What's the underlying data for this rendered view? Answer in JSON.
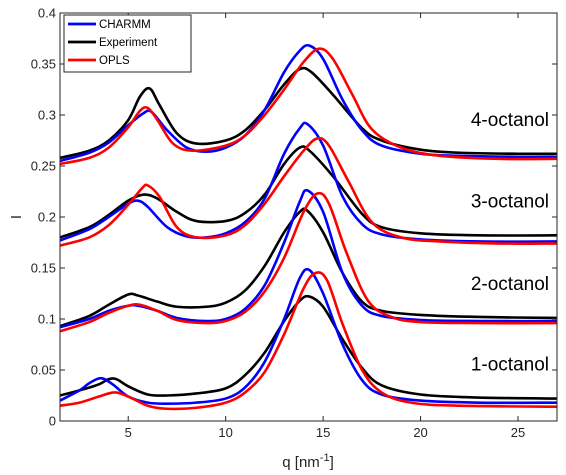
{
  "chart_data": {
    "type": "line",
    "xlabel": "q [nm",
    "xlabel_sup": "-1",
    "xlabel_end": "]",
    "ylabel": "I",
    "xlim": [
      1.5,
      27
    ],
    "ylim": [
      0,
      0.4
    ],
    "x_ticks": [
      5,
      10,
      15,
      20,
      25
    ],
    "y_ticks": [
      0,
      0.05,
      0.1,
      0.15,
      0.2,
      0.25,
      0.3,
      0.35,
      0.4
    ],
    "x_tick_labels": [
      "5",
      "10",
      "15",
      "20",
      "25"
    ],
    "y_tick_labels": [
      "0",
      "0.05",
      "0.1",
      "0.15",
      "0.2",
      "0.25",
      "0.3",
      "0.35",
      "0.4"
    ],
    "grid": false,
    "legend_position": "top-left",
    "legend": [
      {
        "name": "CHARMM",
        "color": "#0000ff"
      },
      {
        "name": "Experiment",
        "color": "#000000"
      },
      {
        "name": "OPLS",
        "color": "#ff0000"
      }
    ],
    "groups": [
      {
        "label": "4-octanol",
        "series": {
          "CHARMM": [
            [
              1.5,
              0.255
            ],
            [
              3,
              0.263
            ],
            [
              4,
              0.273
            ],
            [
              5,
              0.29
            ],
            [
              5.8,
              0.302
            ],
            [
              6.2,
              0.303
            ],
            [
              7,
              0.285
            ],
            [
              8,
              0.268
            ],
            [
              9,
              0.264
            ],
            [
              10,
              0.268
            ],
            [
              11,
              0.28
            ],
            [
              12,
              0.305
            ],
            [
              13,
              0.342
            ],
            [
              13.8,
              0.363
            ],
            [
              14.3,
              0.368
            ],
            [
              15,
              0.355
            ],
            [
              16,
              0.315
            ],
            [
              17,
              0.285
            ],
            [
              18,
              0.27
            ],
            [
              20,
              0.262
            ],
            [
              22,
              0.26
            ],
            [
              25,
              0.259
            ],
            [
              27,
              0.259
            ]
          ],
          "Experiment": [
            [
              1.5,
              0.258
            ],
            [
              3,
              0.265
            ],
            [
              4,
              0.275
            ],
            [
              5,
              0.295
            ],
            [
              5.6,
              0.318
            ],
            [
              6.1,
              0.326
            ],
            [
              6.6,
              0.31
            ],
            [
              7.5,
              0.282
            ],
            [
              8.5,
              0.272
            ],
            [
              10,
              0.275
            ],
            [
              11,
              0.285
            ],
            [
              12,
              0.305
            ],
            [
              13,
              0.33
            ],
            [
              13.8,
              0.345
            ],
            [
              14.4,
              0.342
            ],
            [
              15.5,
              0.32
            ],
            [
              17,
              0.287
            ],
            [
              18,
              0.275
            ],
            [
              20,
              0.266
            ],
            [
              22,
              0.263
            ],
            [
              25,
              0.262
            ],
            [
              27,
              0.262
            ]
          ],
          "OPLS": [
            [
              1.5,
              0.252
            ],
            [
              3,
              0.258
            ],
            [
              4,
              0.268
            ],
            [
              5,
              0.288
            ],
            [
              5.6,
              0.304
            ],
            [
              6,
              0.307
            ],
            [
              6.5,
              0.295
            ],
            [
              7.3,
              0.272
            ],
            [
              8.3,
              0.265
            ],
            [
              10,
              0.27
            ],
            [
              11,
              0.28
            ],
            [
              12,
              0.3
            ],
            [
              13,
              0.325
            ],
            [
              14,
              0.352
            ],
            [
              14.8,
              0.365
            ],
            [
              15.5,
              0.355
            ],
            [
              16.5,
              0.32
            ],
            [
              17.5,
              0.286
            ],
            [
              19,
              0.268
            ],
            [
              21,
              0.26
            ],
            [
              24,
              0.257
            ],
            [
              27,
              0.257
            ]
          ]
        }
      },
      {
        "label": "3-octanol",
        "series": {
          "CHARMM": [
            [
              1.5,
              0.177
            ],
            [
              3,
              0.188
            ],
            [
              4,
              0.2
            ],
            [
              5,
              0.213
            ],
            [
              5.5,
              0.216
            ],
            [
              6,
              0.21
            ],
            [
              7,
              0.19
            ],
            [
              8,
              0.181
            ],
            [
              9,
              0.18
            ],
            [
              10,
              0.184
            ],
            [
              11,
              0.195
            ],
            [
              12,
              0.218
            ],
            [
              13,
              0.262
            ],
            [
              13.8,
              0.287
            ],
            [
              14.2,
              0.291
            ],
            [
              15,
              0.27
            ],
            [
              16,
              0.22
            ],
            [
              17,
              0.193
            ],
            [
              18,
              0.183
            ],
            [
              20,
              0.178
            ],
            [
              23,
              0.176
            ],
            [
              27,
              0.176
            ]
          ],
          "Experiment": [
            [
              1.5,
              0.18
            ],
            [
              3,
              0.19
            ],
            [
              4,
              0.202
            ],
            [
              5,
              0.216
            ],
            [
              5.8,
              0.222
            ],
            [
              6.5,
              0.218
            ],
            [
              7.5,
              0.205
            ],
            [
              8.5,
              0.196
            ],
            [
              10,
              0.196
            ],
            [
              11,
              0.204
            ],
            [
              12,
              0.222
            ],
            [
              13,
              0.252
            ],
            [
              13.8,
              0.268
            ],
            [
              14.3,
              0.265
            ],
            [
              15.5,
              0.24
            ],
            [
              17,
              0.203
            ],
            [
              18,
              0.19
            ],
            [
              20,
              0.184
            ],
            [
              23,
              0.182
            ],
            [
              27,
              0.182
            ]
          ],
          "OPLS": [
            [
              1.5,
              0.172
            ],
            [
              3,
              0.18
            ],
            [
              4,
              0.192
            ],
            [
              5,
              0.212
            ],
            [
              5.7,
              0.228
            ],
            [
              6,
              0.231
            ],
            [
              6.6,
              0.22
            ],
            [
              7.5,
              0.19
            ],
            [
              8.5,
              0.18
            ],
            [
              10,
              0.182
            ],
            [
              11,
              0.192
            ],
            [
              12,
              0.213
            ],
            [
              13,
              0.24
            ],
            [
              14,
              0.265
            ],
            [
              14.7,
              0.277
            ],
            [
              15.3,
              0.27
            ],
            [
              16.3,
              0.235
            ],
            [
              17.5,
              0.195
            ],
            [
              19,
              0.18
            ],
            [
              21,
              0.176
            ],
            [
              24,
              0.174
            ],
            [
              27,
              0.174
            ]
          ]
        }
      },
      {
        "label": "2-octanol",
        "series": {
          "CHARMM": [
            [
              1.5,
              0.092
            ],
            [
              3,
              0.1
            ],
            [
              4,
              0.108
            ],
            [
              5,
              0.113
            ],
            [
              5.5,
              0.113
            ],
            [
              6.5,
              0.108
            ],
            [
              7.5,
              0.101
            ],
            [
              9,
              0.098
            ],
            [
              10,
              0.1
            ],
            [
              11,
              0.11
            ],
            [
              12,
              0.133
            ],
            [
              13,
              0.175
            ],
            [
              13.8,
              0.215
            ],
            [
              14.2,
              0.226
            ],
            [
              15,
              0.205
            ],
            [
              16,
              0.145
            ],
            [
              17,
              0.113
            ],
            [
              18,
              0.103
            ],
            [
              20,
              0.099
            ],
            [
              23,
              0.098
            ],
            [
              27,
              0.098
            ]
          ],
          "Experiment": [
            [
              1.5,
              0.093
            ],
            [
              3,
              0.103
            ],
            [
              4,
              0.114
            ],
            [
              5,
              0.124
            ],
            [
              5.5,
              0.123
            ],
            [
              6.5,
              0.117
            ],
            [
              7.5,
              0.112
            ],
            [
              9,
              0.112
            ],
            [
              10,
              0.116
            ],
            [
              11,
              0.128
            ],
            [
              12,
              0.152
            ],
            [
              13,
              0.185
            ],
            [
              13.8,
              0.205
            ],
            [
              14.2,
              0.206
            ],
            [
              15,
              0.185
            ],
            [
              16,
              0.145
            ],
            [
              17,
              0.117
            ],
            [
              18,
              0.108
            ],
            [
              20,
              0.104
            ],
            [
              23,
              0.102
            ],
            [
              27,
              0.101
            ]
          ],
          "OPLS": [
            [
              1.5,
              0.088
            ],
            [
              3,
              0.097
            ],
            [
              4,
              0.106
            ],
            [
              5,
              0.113
            ],
            [
              5.6,
              0.114
            ],
            [
              6.5,
              0.108
            ],
            [
              7.5,
              0.099
            ],
            [
              9,
              0.096
            ],
            [
              10,
              0.098
            ],
            [
              11,
              0.107
            ],
            [
              12,
              0.127
            ],
            [
              13,
              0.16
            ],
            [
              14,
              0.205
            ],
            [
              14.7,
              0.223
            ],
            [
              15.3,
              0.213
            ],
            [
              16.2,
              0.165
            ],
            [
              17.3,
              0.118
            ],
            [
              18.5,
              0.102
            ],
            [
              20,
              0.097
            ],
            [
              23,
              0.096
            ],
            [
              27,
              0.096
            ]
          ]
        }
      },
      {
        "label": "1-octanol",
        "series": {
          "CHARMM": [
            [
              1.5,
              0.02
            ],
            [
              2.5,
              0.03
            ],
            [
              3,
              0.037
            ],
            [
              3.6,
              0.042
            ],
            [
              4.2,
              0.036
            ],
            [
              5,
              0.024
            ],
            [
              6,
              0.018
            ],
            [
              7,
              0.017
            ],
            [
              8.5,
              0.018
            ],
            [
              10,
              0.022
            ],
            [
              11,
              0.033
            ],
            [
              12,
              0.058
            ],
            [
              13,
              0.1
            ],
            [
              13.8,
              0.14
            ],
            [
              14.3,
              0.148
            ],
            [
              15,
              0.125
            ],
            [
              16,
              0.075
            ],
            [
              17,
              0.04
            ],
            [
              18,
              0.026
            ],
            [
              20,
              0.02
            ],
            [
              23,
              0.018
            ],
            [
              27,
              0.018
            ]
          ],
          "Experiment": [
            [
              1.5,
              0.025
            ],
            [
              2.5,
              0.03
            ],
            [
              3.5,
              0.036
            ],
            [
              4,
              0.041
            ],
            [
              4.4,
              0.041
            ],
            [
              5,
              0.034
            ],
            [
              6,
              0.026
            ],
            [
              7,
              0.025
            ],
            [
              8.5,
              0.027
            ],
            [
              10,
              0.032
            ],
            [
              11,
              0.045
            ],
            [
              12,
              0.067
            ],
            [
              13,
              0.098
            ],
            [
              13.8,
              0.118
            ],
            [
              14.3,
              0.122
            ],
            [
              15,
              0.112
            ],
            [
              16,
              0.08
            ],
            [
              17,
              0.052
            ],
            [
              18,
              0.035
            ],
            [
              20,
              0.026
            ],
            [
              23,
              0.023
            ],
            [
              27,
              0.022
            ]
          ],
          "OPLS": [
            [
              1.5,
              0.015
            ],
            [
              2.5,
              0.018
            ],
            [
              3.5,
              0.024
            ],
            [
              4.3,
              0.028
            ],
            [
              5,
              0.024
            ],
            [
              6,
              0.015
            ],
            [
              7,
              0.012
            ],
            [
              8.5,
              0.013
            ],
            [
              10,
              0.018
            ],
            [
              11,
              0.028
            ],
            [
              12,
              0.048
            ],
            [
              13,
              0.085
            ],
            [
              14,
              0.13
            ],
            [
              14.6,
              0.145
            ],
            [
              15.2,
              0.138
            ],
            [
              16,
              0.095
            ],
            [
              17,
              0.05
            ],
            [
              18,
              0.028
            ],
            [
              19.5,
              0.018
            ],
            [
              22,
              0.015
            ],
            [
              27,
              0.014
            ]
          ]
        }
      }
    ]
  }
}
